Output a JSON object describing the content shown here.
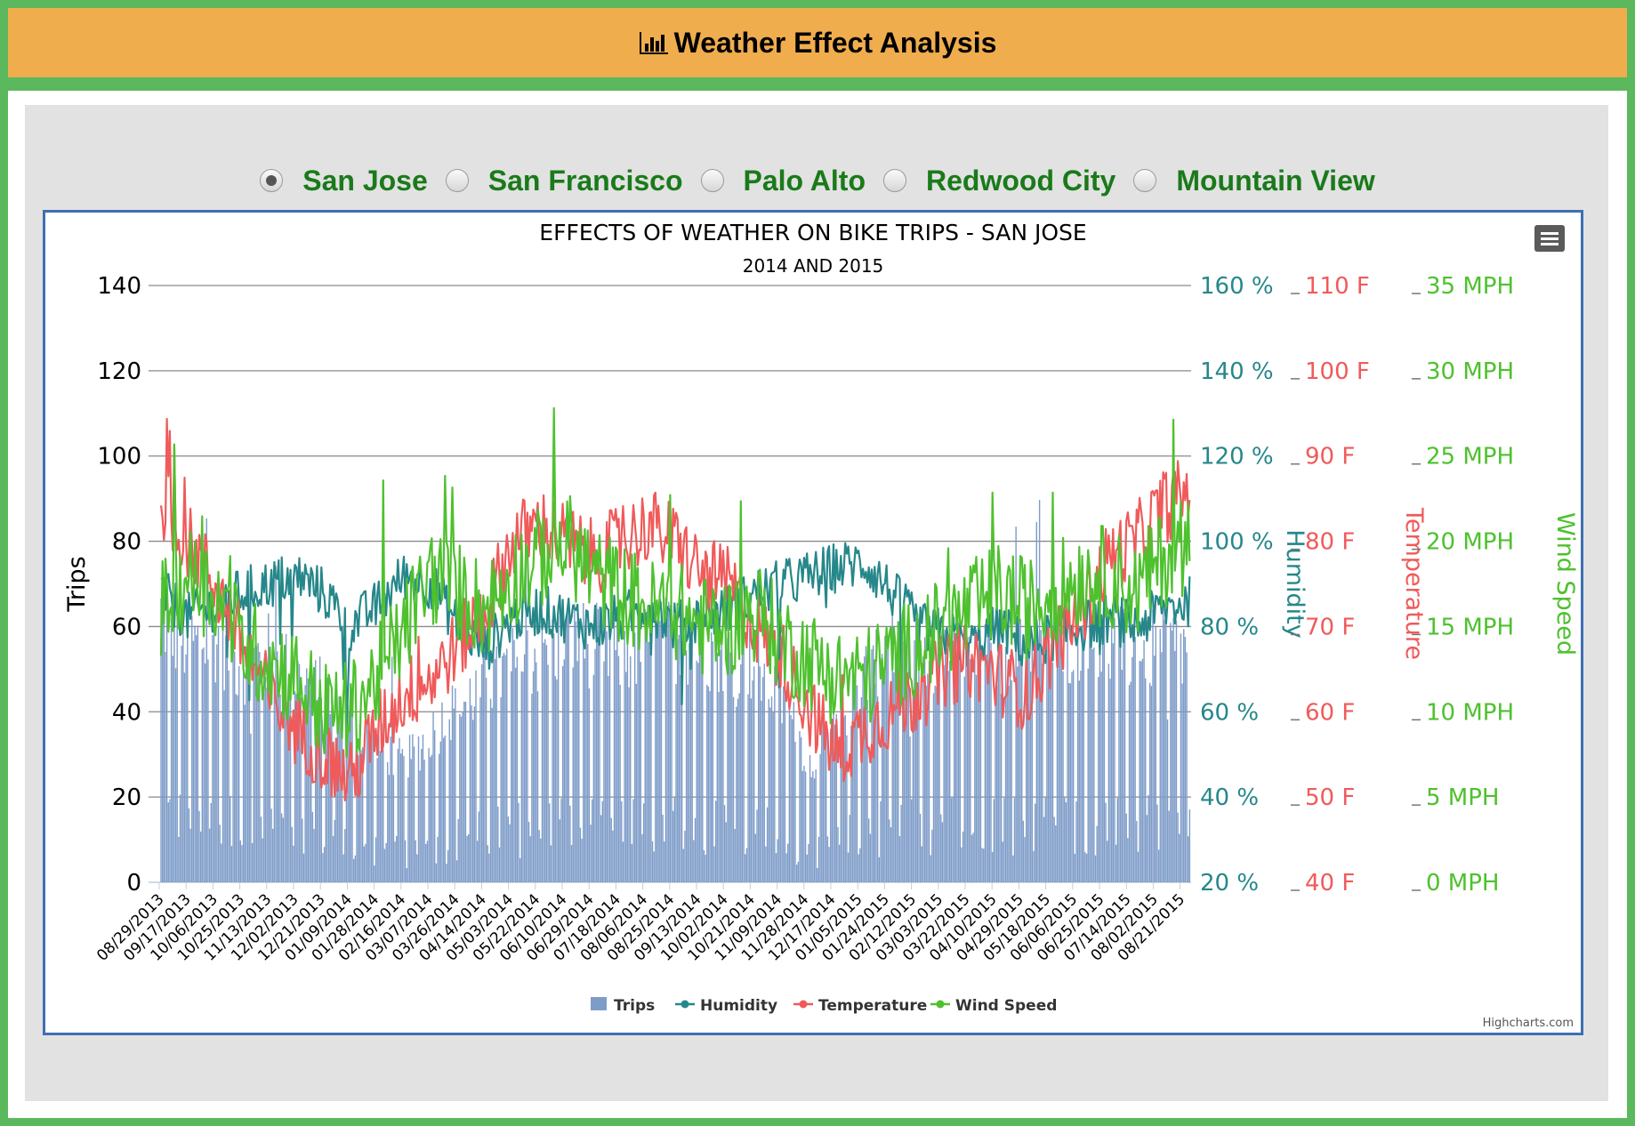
{
  "header": {
    "title": "Weather Effect Analysis",
    "icon": "bar-chart-icon"
  },
  "city_selector": {
    "options": [
      "San Jose",
      "San Francisco",
      "Palo Alto",
      "Redwood City",
      "Mountain View"
    ],
    "selected": "San Jose"
  },
  "chart_menu_icon": "hamburger-menu-icon",
  "credits": "Highcharts.com",
  "colors": {
    "trips": "#7e9cc8",
    "humidity": "#26878a",
    "temperature": "#f05a5a",
    "wind": "#4ec12e",
    "title_header_bg": "#f0ad4e",
    "radio_label": "#1a7a1a"
  },
  "chart_data": {
    "type": "line",
    "title": "EFFECTS OF WEATHER ON BIKE TRIPS - SAN JOSE",
    "subtitle": "2014 AND 2015",
    "xlabel": "",
    "x_tick_labels": [
      "08/29/2013",
      "09/17/2013",
      "10/06/2013",
      "10/25/2013",
      "11/13/2013",
      "12/02/2013",
      "12/21/2013",
      "01/09/2014",
      "01/28/2014",
      "02/16/2014",
      "03/07/2014",
      "03/26/2014",
      "04/14/2014",
      "05/03/2014",
      "05/22/2014",
      "06/10/2014",
      "06/29/2014",
      "07/18/2014",
      "08/06/2014",
      "08/25/2014",
      "09/13/2014",
      "10/02/2014",
      "10/21/2014",
      "11/09/2014",
      "11/28/2014",
      "12/17/2014",
      "01/05/2015",
      "01/24/2015",
      "02/12/2015",
      "03/03/2015",
      "03/22/2015",
      "04/10/2015",
      "04/29/2015",
      "05/18/2015",
      "06/06/2015",
      "06/25/2015",
      "07/14/2015",
      "08/02/2015",
      "08/21/2015"
    ],
    "grid": true,
    "legend_position": "bottom-center",
    "y_axes": [
      {
        "name": "Trips",
        "title": "Trips",
        "ticks": [
          "0",
          "20",
          "40",
          "60",
          "80",
          "100",
          "120",
          "140"
        ],
        "range": [
          0,
          140
        ]
      },
      {
        "name": "Humidity",
        "title": "Humidity",
        "ticks": [
          "20 %",
          "40 %",
          "60 %",
          "80 %",
          "100 %",
          "120 %",
          "140 %",
          "160 %"
        ],
        "range": [
          20,
          160
        ]
      },
      {
        "name": "Temperature",
        "title": "Temperature",
        "ticks": [
          "40 F",
          "50 F",
          "60 F",
          "70 F",
          "80 F",
          "90 F",
          "100 F",
          "110 F"
        ],
        "range": [
          40,
          110
        ]
      },
      {
        "name": "Wind Speed",
        "title": "Wind Speed",
        "ticks": [
          "0 MPH",
          "5 MPH",
          "10 MPH",
          "15 MPH",
          "20 MPH",
          "25 MPH",
          "30 MPH",
          "35 MPH"
        ],
        "range": [
          0,
          35
        ]
      }
    ],
    "series": [
      {
        "name": "Trips",
        "type": "column",
        "axis": 0,
        "color": "#7e9cc8",
        "anchors": [
          68,
          60,
          62,
          55,
          58,
          52,
          48,
          40,
          35,
          30,
          38,
          45,
          50,
          55,
          58,
          62,
          60,
          58,
          60,
          62,
          60,
          58,
          55,
          45,
          30,
          40,
          55,
          60,
          58,
          60,
          55,
          58,
          62,
          60,
          62,
          60,
          58,
          60,
          58
        ]
      },
      {
        "name": "Humidity",
        "type": "line",
        "axis": 1,
        "color": "#26878a",
        "anchors": [
          88,
          82,
          85,
          88,
          90,
          92,
          88,
          80,
          85,
          92,
          90,
          80,
          75,
          82,
          84,
          82,
          80,
          82,
          85,
          80,
          82,
          84,
          88,
          90,
          92,
          94,
          95,
          88,
          80,
          78,
          76,
          80,
          75,
          78,
          80,
          82,
          80,
          84,
          86
        ]
      },
      {
        "name": "Temperature",
        "type": "line",
        "axis": 2,
        "color": "#f05a5a",
        "anchors": [
          85,
          80,
          75,
          68,
          62,
          58,
          55,
          52,
          58,
          62,
          64,
          68,
          72,
          80,
          82,
          80,
          78,
          80,
          82,
          80,
          76,
          75,
          70,
          66,
          60,
          55,
          58,
          60,
          62,
          65,
          66,
          64,
          62,
          68,
          72,
          78,
          80,
          84,
          86
        ]
      },
      {
        "name": "Wind Speed",
        "type": "line",
        "axis": 3,
        "color": "#4ec12e",
        "anchors": [
          16,
          18,
          17,
          14,
          13,
          12,
          10,
          10,
          12,
          15,
          18,
          17,
          16,
          18,
          19,
          20,
          18,
          17,
          16,
          16,
          15,
          15,
          16,
          14,
          13,
          12,
          12,
          13,
          14,
          15,
          16,
          17,
          16,
          17,
          18,
          18,
          17,
          19,
          20
        ]
      }
    ]
  }
}
